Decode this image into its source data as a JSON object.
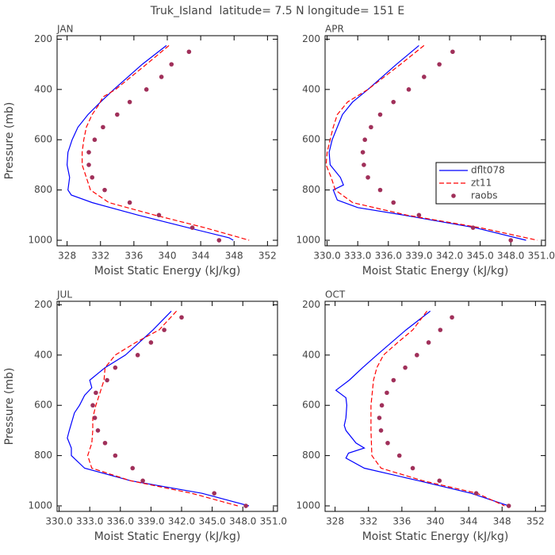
{
  "page_title": "Truk_Island  latitude= 7.5 N longitude= 151 E",
  "chart_data": [
    {
      "type": "line",
      "title": "JAN",
      "x_label": "Moist Static Energy (kJ/kg)",
      "y_label": "Pressure (mb)",
      "xlim": [
        326.8,
        353.2
      ],
      "xticks": [
        328,
        332,
        336,
        340,
        344,
        348,
        352
      ],
      "ylim": [
        1022,
        186
      ],
      "yticks": [
        200,
        400,
        600,
        800,
        1000
      ],
      "legend": false,
      "series": [
        {
          "color": "#0000ff",
          "style": "solid",
          "x": [
            339.9,
            337.0,
            333.6,
            332.0,
            330.5,
            329.3,
            328.6,
            328.1,
            328.0,
            328.3,
            328.1,
            328.5,
            331.0,
            336.5,
            342.5,
            347.4,
            347.9
          ],
          "y": [
            225,
            300,
            400,
            450,
            500,
            550,
            600,
            650,
            700,
            750,
            800,
            820,
            850,
            900,
            950,
            990,
            1000
          ]
        },
        {
          "color": "#ff0000",
          "style": "dashed",
          "x": [
            340.2,
            337.5,
            333.8,
            332.3,
            331.8,
            331.0,
            330.3,
            330.0,
            329.8,
            329.8,
            330.3,
            330.8,
            333.0,
            338.5,
            344.5,
            349.8
          ],
          "y": [
            225,
            300,
            400,
            430,
            460,
            500,
            550,
            600,
            650,
            700,
            750,
            800,
            850,
            900,
            950,
            1000
          ]
        },
        {
          "color": "#a0305a",
          "style": "dots",
          "x": [
            342.6,
            340.5,
            339.3,
            337.5,
            335.5,
            334.0,
            332.3,
            331.3,
            330.6,
            330.6,
            331.0,
            332.5,
            335.5,
            339.0,
            343.0,
            346.2
          ],
          "y": [
            250,
            300,
            350,
            400,
            450,
            500,
            550,
            600,
            650,
            700,
            750,
            800,
            850,
            900,
            950,
            1000
          ]
        }
      ]
    },
    {
      "type": "line",
      "title": "APR",
      "x_label": "Moist Static Energy (kJ/kg)",
      "xlim": [
        329.8,
        351.4
      ],
      "xticks": [
        {
          "value": 330,
          "label": "330.0"
        },
        {
          "value": 333,
          "label": "333.0"
        },
        {
          "value": 336,
          "label": "336.0"
        },
        {
          "value": 339,
          "label": "339.0"
        },
        {
          "value": 342,
          "label": "342.0"
        },
        {
          "value": 345,
          "label": "345.0"
        },
        {
          "value": 348,
          "label": "348.0"
        },
        {
          "value": 351,
          "label": "351.0"
        }
      ],
      "ylim": [
        1022,
        186
      ],
      "yticks": [
        200,
        400,
        600,
        800,
        1000
      ],
      "legend": true,
      "series": [
        {
          "name": "dflt078",
          "color": "#0000ff",
          "style": "solid",
          "x": [
            339.0,
            336.8,
            334.0,
            332.5,
            331.5,
            331.0,
            330.5,
            330.2,
            330.3,
            331.3,
            331.6,
            330.6,
            331.0,
            333.0,
            337.5,
            344.5,
            349.5
          ],
          "y": [
            225,
            300,
            400,
            450,
            500,
            550,
            600,
            650,
            700,
            750,
            780,
            800,
            840,
            870,
            900,
            950,
            1000
          ]
        },
        {
          "name": "zt11",
          "color": "#ff0000",
          "style": "dashed",
          "x": [
            339.5,
            337.2,
            334.0,
            332.0,
            331.0,
            330.6,
            330.3,
            330.0,
            329.9,
            330.4,
            330.8,
            332.5,
            337.8,
            345.0,
            350.6
          ],
          "y": [
            225,
            300,
            400,
            450,
            500,
            550,
            600,
            650,
            700,
            750,
            800,
            850,
            900,
            950,
            1000
          ]
        },
        {
          "name": "raobs",
          "color": "#a0305a",
          "style": "dots",
          "x": [
            342.3,
            341.0,
            339.5,
            338.0,
            336.5,
            335.2,
            334.3,
            333.7,
            333.5,
            333.6,
            334.0,
            335.2,
            336.5,
            339.0,
            344.3,
            348.0
          ],
          "y": [
            250,
            300,
            350,
            400,
            450,
            500,
            550,
            600,
            650,
            700,
            750,
            800,
            850,
            900,
            950,
            1000
          ]
        }
      ]
    },
    {
      "type": "line",
      "title": "JUL",
      "x_label": "Moist Static Energy (kJ/kg)",
      "y_label": "Pressure (mb)",
      "xlim": [
        329.8,
        351.4
      ],
      "xticks": [
        {
          "value": 330,
          "label": "330.0"
        },
        {
          "value": 333,
          "label": "333.0"
        },
        {
          "value": 336,
          "label": "336.0"
        },
        {
          "value": 339,
          "label": "339.0"
        },
        {
          "value": 342,
          "label": "342.0"
        },
        {
          "value": 345,
          "label": "345.0"
        },
        {
          "value": 348,
          "label": "348.0"
        },
        {
          "value": 351,
          "label": "351.0"
        }
      ],
      "ylim": [
        1022,
        186
      ],
      "yticks": [
        200,
        400,
        600,
        800,
        1000
      ],
      "legend": false,
      "series": [
        {
          "color": "#0000ff",
          "style": "solid",
          "x": [
            341.0,
            339.2,
            336.5,
            334.5,
            333.0,
            333.2,
            332.5,
            332.0,
            331.5,
            331.0,
            330.8,
            331.2,
            331.2,
            332.5,
            337.0,
            344.0,
            348.6
          ],
          "y": [
            225,
            300,
            400,
            450,
            500,
            530,
            560,
            600,
            630,
            700,
            730,
            770,
            800,
            850,
            900,
            950,
            1000
          ]
        },
        {
          "color": "#ff0000",
          "style": "dashed",
          "x": [
            341.5,
            339.8,
            337.5,
            335.5,
            334.5,
            334.4,
            334.0,
            333.6,
            333.3,
            333.3,
            333.2,
            332.8,
            333.2,
            337.0,
            343.0,
            347.5
          ],
          "y": [
            225,
            300,
            350,
            400,
            450,
            500,
            550,
            600,
            650,
            700,
            750,
            800,
            850,
            900,
            950,
            1000
          ]
        },
        {
          "color": "#a0305a",
          "style": "dots",
          "x": [
            342.0,
            340.3,
            339.0,
            337.7,
            335.5,
            334.7,
            333.6,
            333.3,
            333.5,
            333.8,
            334.5,
            335.5,
            337.2,
            338.2,
            345.2,
            348.3
          ],
          "y": [
            250,
            300,
            350,
            400,
            450,
            500,
            550,
            600,
            650,
            700,
            750,
            800,
            850,
            900,
            950,
            1000
          ]
        }
      ]
    },
    {
      "type": "line",
      "title": "OCT",
      "x_label": "Moist Static Energy (kJ/kg)",
      "xlim": [
        326.8,
        353.2
      ],
      "xticks": [
        328,
        332,
        336,
        340,
        344,
        348,
        352
      ],
      "ylim": [
        1022,
        186
      ],
      "yticks": [
        200,
        400,
        600,
        800,
        1000
      ],
      "legend": false,
      "series": [
        {
          "color": "#0000ff",
          "style": "solid",
          "x": [
            339.4,
            336.5,
            333.0,
            331.3,
            329.7,
            328.1,
            329.3,
            329.4,
            329.3,
            329.1,
            329.3,
            330.5,
            331.5,
            329.6,
            329.3,
            331.5,
            338.0,
            344.3,
            348.8
          ],
          "y": [
            225,
            300,
            400,
            450,
            500,
            540,
            570,
            600,
            650,
            680,
            700,
            750,
            770,
            790,
            810,
            850,
            900,
            950,
            1000
          ]
        },
        {
          "color": "#ff0000",
          "style": "dashed",
          "x": [
            339.0,
            337.3,
            335.5,
            333.8,
            333.0,
            332.6,
            332.3,
            332.3,
            332.4,
            333.5,
            338.5,
            345.0,
            348.3
          ],
          "y": [
            225,
            300,
            350,
            400,
            450,
            500,
            600,
            700,
            800,
            850,
            900,
            950,
            1000
          ]
        },
        {
          "color": "#a0305a",
          "style": "dots",
          "x": [
            342.0,
            340.6,
            339.2,
            337.8,
            336.4,
            335.0,
            334.2,
            333.6,
            333.3,
            333.5,
            334.3,
            335.7,
            337.3,
            340.5,
            344.9,
            348.8
          ],
          "y": [
            250,
            300,
            350,
            400,
            450,
            500,
            550,
            600,
            650,
            700,
            750,
            800,
            850,
            900,
            950,
            1000
          ]
        }
      ]
    }
  ]
}
